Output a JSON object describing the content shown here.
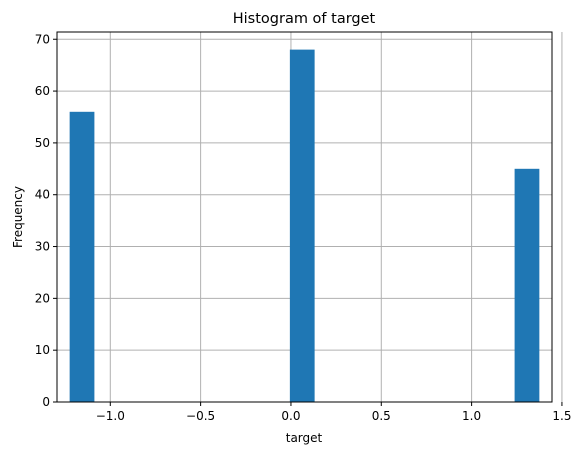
{
  "chart_data": {
    "type": "bar",
    "title": "Histogram of target",
    "xlabel": "target",
    "ylabel": "Frequency",
    "xlim": [
      -1.295,
      1.445
    ],
    "ylim": [
      0,
      71.4
    ],
    "grid": true,
    "bar_color": "#1f77b4",
    "bars": [
      {
        "x_start": -1.225,
        "x_end": -1.088,
        "value": 56
      },
      {
        "x_start": -0.006,
        "x_end": 0.131,
        "value": 68
      },
      {
        "x_start": 1.238,
        "x_end": 1.375,
        "value": 45
      }
    ],
    "x_ticks": [
      {
        "value": -1.0,
        "label": "−1.0"
      },
      {
        "value": -0.5,
        "label": "−0.5"
      },
      {
        "value": 0.0,
        "label": "0.0"
      },
      {
        "value": 0.5,
        "label": "0.5"
      },
      {
        "value": 1.0,
        "label": "1.0"
      },
      {
        "value": 1.5,
        "label": "1.5"
      }
    ],
    "y_ticks": [
      {
        "value": 0,
        "label": "0"
      },
      {
        "value": 10,
        "label": "10"
      },
      {
        "value": 20,
        "label": "20"
      },
      {
        "value": 30,
        "label": "30"
      },
      {
        "value": 40,
        "label": "40"
      },
      {
        "value": 50,
        "label": "50"
      },
      {
        "value": 60,
        "label": "60"
      },
      {
        "value": 70,
        "label": "70"
      }
    ]
  }
}
